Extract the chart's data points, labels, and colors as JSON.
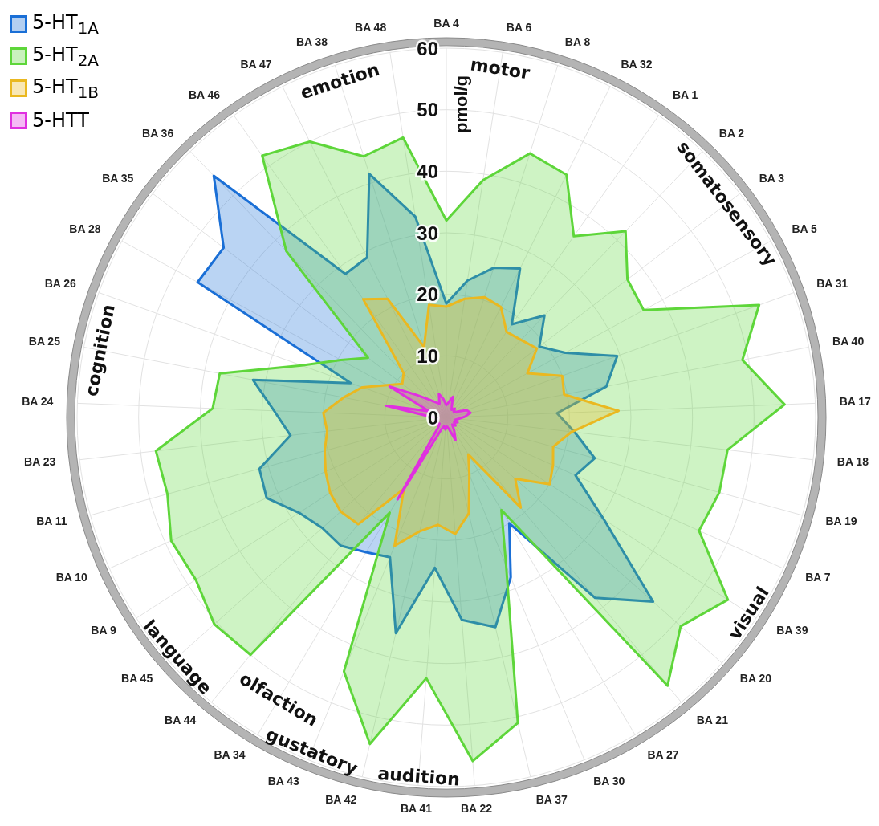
{
  "chart_data": {
    "type": "radar",
    "ylabel": "pmol/g",
    "ylim": [
      0,
      60
    ],
    "yticks": [
      0,
      10,
      20,
      30,
      40,
      50,
      60
    ],
    "grid": true,
    "legend": "top left",
    "categories": [
      "BA 4",
      "BA 6",
      "BA 8",
      "BA 32",
      "BA 1",
      "BA 2",
      "BA 3",
      "BA 5",
      "BA 31",
      "BA 40",
      "BA 17",
      "BA 18",
      "BA 19",
      "BA 7",
      "BA 39",
      "BA 20",
      "BA 21",
      "BA 27",
      "BA 30",
      "BA 37",
      "BA 22",
      "BA 41",
      "BA 42",
      "BA 43",
      "BA 34",
      "BA 44",
      "BA 45",
      "BA 9",
      "BA 10",
      "BA 11",
      "BA 23",
      "BA 24",
      "BA 25",
      "BA 26",
      "BA 28",
      "BA 35",
      "BA 36",
      "BA 46",
      "BA 47",
      "BA 38",
      "BA 48"
    ],
    "series": [
      {
        "name": "5-HT$_{1A}$",
        "color": "#1a6fd6",
        "values": [
          18.5,
          22.5,
          25.5,
          27,
          18.5,
          23,
          19,
          22,
          29.5,
          26.5,
          18,
          21,
          25,
          23,
          30.5,
          45,
          38,
          20,
          28,
          35,
          33,
          24.5,
          36,
          24.5,
          25.5,
          27,
          27,
          28.5,
          32,
          31.5,
          25.5,
          28,
          32,
          16.5,
          46,
          45.5,
          54.5,
          28.5,
          29,
          41.5,
          33
        ]
      },
      {
        "name": "5-HT$_{2A}$",
        "color": "#5ed63a",
        "values": [
          32,
          39,
          45,
          44,
          36,
          42,
          37,
          36.5,
          54,
          49,
          55,
          46,
          46,
          45,
          54.5,
          51,
          56.5,
          17.5,
          26,
          51,
          56,
          42.5,
          54.5,
          44.5,
          18,
          50,
          50.5,
          48.5,
          49,
          47,
          47.5,
          38,
          37.5,
          25,
          19.5,
          16,
          37.5,
          52,
          50,
          44.5,
          46
        ]
      },
      {
        "name": "5-HT$_{1B}$",
        "color": "#eab820",
        "values": [
          18,
          19.5,
          20.5,
          20,
          17,
          17.5,
          18.5,
          15,
          20,
          19.5,
          28,
          20.5,
          18,
          19,
          20,
          15,
          19,
          7,
          10,
          16,
          19,
          17.5,
          19,
          22.5,
          13.5,
          22.5,
          23,
          22.5,
          21.5,
          20.5,
          19.5,
          20,
          17,
          14.5,
          11,
          9,
          10,
          23.5,
          21.5,
          12,
          18.5
        ]
      },
      {
        "name": "5-HTT",
        "color": "#e030e0",
        "values": [
          2,
          2.5,
          3.5,
          2,
          1.5,
          2,
          1.5,
          2,
          3.5,
          4,
          3,
          2,
          1.5,
          2,
          1.5,
          2,
          1.5,
          2.5,
          4,
          2,
          1.5,
          2,
          1.5,
          2,
          15.5,
          2,
          1.5,
          2,
          1.5,
          2,
          1.5,
          2.5,
          10,
          3,
          10.5,
          6,
          4,
          3,
          2.5,
          4,
          3
        ]
      }
    ],
    "annotations": [
      {
        "text": "motor",
        "x": "BA 6"
      },
      {
        "text": "somatosensory",
        "x": "BA 3"
      },
      {
        "text": "visual",
        "x": "BA 39"
      },
      {
        "text": "audition",
        "x": "BA 41"
      },
      {
        "text": "gustatory",
        "x": "BA 43"
      },
      {
        "text": "olfaction",
        "x": "BA 34"
      },
      {
        "text": "language",
        "x": "BA 45"
      },
      {
        "text": "cognition",
        "x": "BA 25"
      },
      {
        "text": "emotion",
        "x": "BA 38"
      }
    ]
  }
}
